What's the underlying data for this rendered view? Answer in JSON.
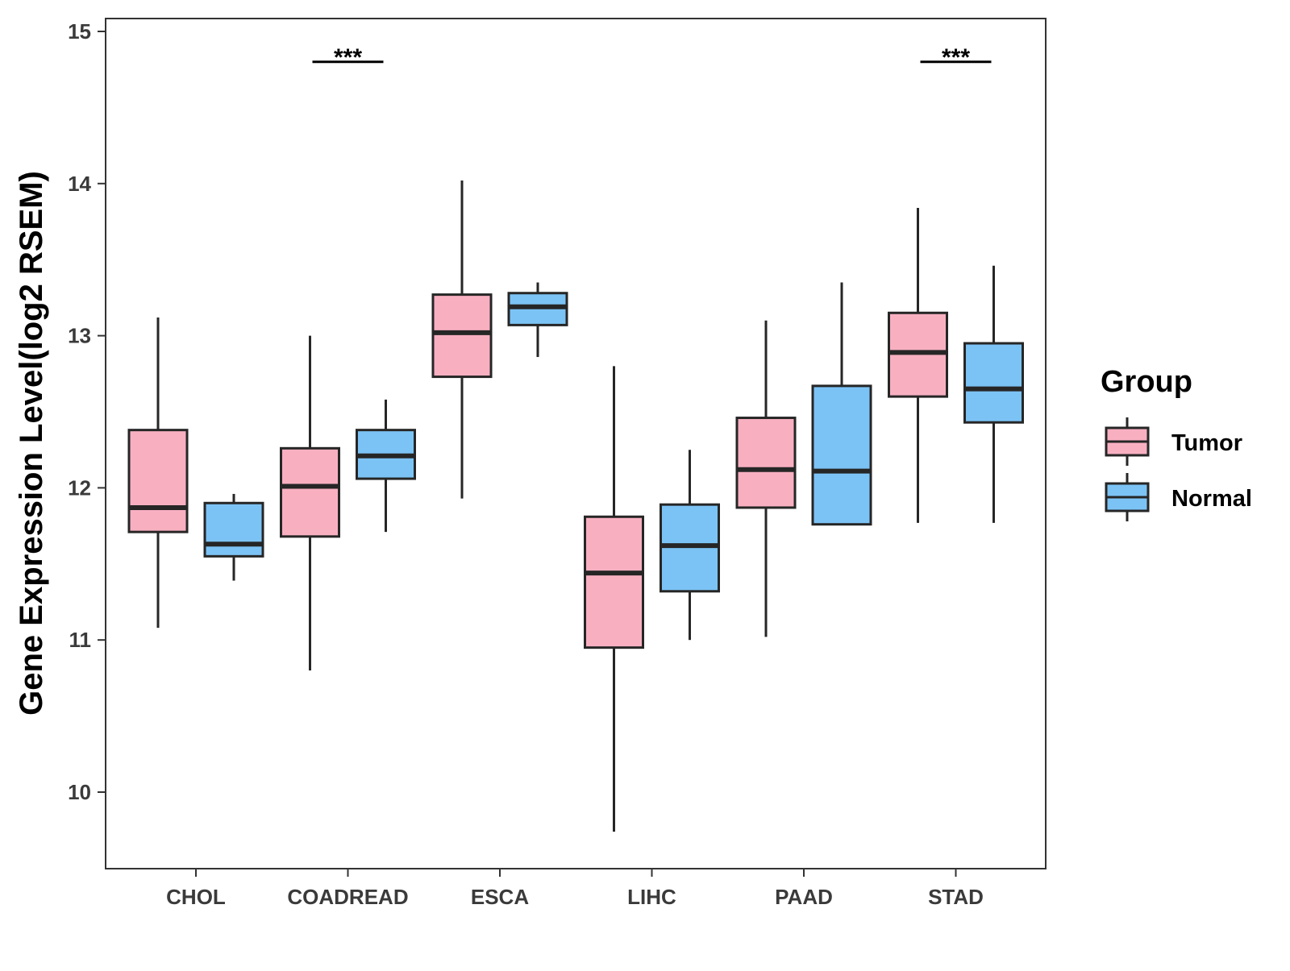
{
  "chart_data": {
    "type": "boxplot",
    "title": "",
    "xlabel": "",
    "ylabel": "Gene Expression Level(log2 RSEM)",
    "ylim": [
      9.5,
      15.1
    ],
    "y_ticks": [
      10,
      11,
      12,
      13,
      14,
      15
    ],
    "categories": [
      "CHOL",
      "COADREAD",
      "ESCA",
      "LIHC",
      "PAAD",
      "STAD"
    ],
    "grid": false,
    "legend": {
      "title": "Group",
      "position": "right",
      "entries": [
        "Tumor",
        "Normal"
      ]
    },
    "series": [
      {
        "name": "Tumor",
        "color": "#F8B0C1",
        "boxes": [
          {
            "category": "CHOL",
            "whisker_low": 11.08,
            "q1": 11.71,
            "median": 11.87,
            "q3": 12.38,
            "whisker_high": 13.12
          },
          {
            "category": "COADREAD",
            "whisker_low": 10.8,
            "q1": 11.68,
            "median": 12.01,
            "q3": 12.26,
            "whisker_high": 13.0
          },
          {
            "category": "ESCA",
            "whisker_low": 11.93,
            "q1": 12.73,
            "median": 13.02,
            "q3": 13.27,
            "whisker_high": 14.02
          },
          {
            "category": "LIHC",
            "whisker_low": 9.74,
            "q1": 10.95,
            "median": 11.44,
            "q3": 11.81,
            "whisker_high": 12.8
          },
          {
            "category": "PAAD",
            "whisker_low": 11.02,
            "q1": 11.87,
            "median": 12.12,
            "q3": 12.46,
            "whisker_high": 13.1
          },
          {
            "category": "STAD",
            "whisker_low": 11.77,
            "q1": 12.6,
            "median": 12.89,
            "q3": 13.15,
            "whisker_high": 13.84
          }
        ]
      },
      {
        "name": "Normal",
        "color": "#7CC3F5",
        "boxes": [
          {
            "category": "CHOL",
            "whisker_low": 11.39,
            "q1": 11.55,
            "median": 11.63,
            "q3": 11.9,
            "whisker_high": 11.96
          },
          {
            "category": "COADREAD",
            "whisker_low": 11.71,
            "q1": 12.06,
            "median": 12.21,
            "q3": 12.38,
            "whisker_high": 12.58
          },
          {
            "category": "ESCA",
            "whisker_low": 12.86,
            "q1": 13.07,
            "median": 13.19,
            "q3": 13.28,
            "whisker_high": 13.35
          },
          {
            "category": "LIHC",
            "whisker_low": 11.0,
            "q1": 11.32,
            "median": 11.62,
            "q3": 11.89,
            "whisker_high": 12.25
          },
          {
            "category": "PAAD",
            "whisker_low": 11.76,
            "q1": 11.76,
            "median": 12.11,
            "q3": 12.67,
            "whisker_high": 13.35
          },
          {
            "category": "STAD",
            "whisker_low": 11.77,
            "q1": 12.43,
            "median": 12.65,
            "q3": 12.95,
            "whisker_high": 13.46
          }
        ]
      }
    ],
    "annotations": [
      {
        "category": "COADREAD",
        "text": "***",
        "y": 14.8
      },
      {
        "category": "STAD",
        "text": "***",
        "y": 14.8
      }
    ]
  }
}
